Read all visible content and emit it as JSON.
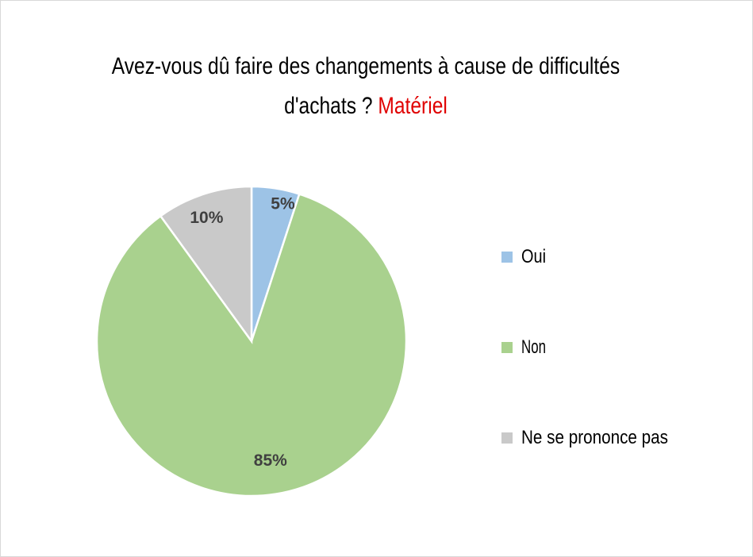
{
  "chart_data": {
    "type": "pie",
    "title": "Avez-vous dû faire des changements à cause de difficultés d'achats ?",
    "title_accent": "Matériel",
    "title_accent_color": "#e00000",
    "categories": [
      "Oui",
      "Non",
      "Ne se prononce pas"
    ],
    "values": [
      5,
      85,
      10
    ],
    "data_labels": [
      "5%",
      "85%",
      "10%"
    ],
    "colors": [
      "#9dc3e6",
      "#a9d18e",
      "#c9c9c9"
    ],
    "start": "12 o'clock, clockwise",
    "legend_position": "right"
  }
}
